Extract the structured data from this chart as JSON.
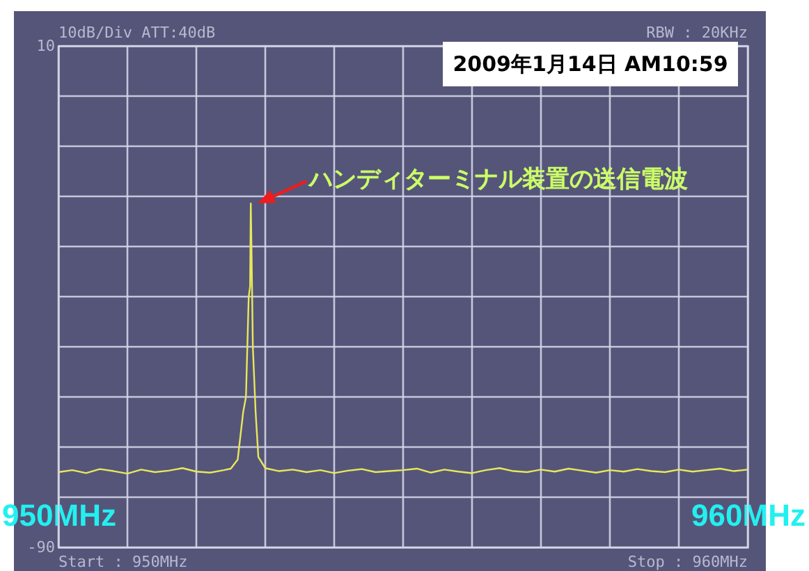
{
  "chart_data": {
    "type": "line",
    "x": [
      950.0,
      950.2,
      950.4,
      950.6,
      950.8,
      951.0,
      951.2,
      951.4,
      951.6,
      951.8,
      952.0,
      952.2,
      952.4,
      952.5,
      952.6,
      952.68,
      952.72,
      952.76,
      952.78,
      952.79,
      952.8,
      952.82,
      952.86,
      952.9,
      953.0,
      953.2,
      953.4,
      953.6,
      953.8,
      954.0,
      954.2,
      954.4,
      954.6,
      954.8,
      955.0,
      955.2,
      955.4,
      955.6,
      955.8,
      956.0,
      956.2,
      956.4,
      956.6,
      956.8,
      957.0,
      957.2,
      957.4,
      957.6,
      957.8,
      958.0,
      958.2,
      958.4,
      958.6,
      958.8,
      959.0,
      959.2,
      959.4,
      959.6,
      959.8,
      960.0
    ],
    "series": [
      {
        "color": "#e8e85a",
        "values": [
          -75,
          -74.6,
          -75.2,
          -74.4,
          -74.8,
          -75.3,
          -74.5,
          -75,
          -74.7,
          -74.2,
          -74.9,
          -75.1,
          -74.6,
          -74.3,
          -72.5,
          -63,
          -60,
          -40,
          -38,
          -21.4,
          -30,
          -50,
          -63,
          -72,
          -74.2,
          -74.8,
          -74.5,
          -75,
          -74.6,
          -75.2,
          -74.7,
          -74.4,
          -75,
          -74.8,
          -74.6,
          -74.3,
          -75.1,
          -74.5,
          -74.9,
          -75.2,
          -74.6,
          -74.2,
          -74.8,
          -75,
          -74.5,
          -74.9,
          -74.3,
          -74.7,
          -75.1,
          -74.6,
          -74.9,
          -74.4,
          -74.8,
          -75,
          -74.5,
          -74.9,
          -74.6,
          -74.3,
          -74.8,
          -74.5
        ]
      }
    ],
    "xlim": [
      950,
      960
    ],
    "xticks": [
      {
        "value": 950,
        "label": "950MHz"
      },
      {
        "value": 951,
        "label": null
      },
      {
        "value": 952,
        "label": null
      },
      {
        "value": 953,
        "label": null
      },
      {
        "value": 954,
        "label": null
      },
      {
        "value": 955,
        "label": null
      },
      {
        "value": 956,
        "label": null
      },
      {
        "value": 957,
        "label": null
      },
      {
        "value": 958,
        "label": null
      },
      {
        "value": 959,
        "label": null
      },
      {
        "value": 960,
        "label": "960MHz"
      }
    ],
    "ylim": [
      -90,
      10
    ],
    "yticks": [
      {
        "value": -90,
        "label": "-90"
      },
      {
        "value": -80,
        "label": null
      },
      {
        "value": -70,
        "label": null
      },
      {
        "value": -60,
        "label": null
      },
      {
        "value": -50,
        "label": null
      },
      {
        "value": -40,
        "label": null
      },
      {
        "value": -30,
        "label": null
      },
      {
        "value": -20,
        "label": null
      },
      {
        "value": -10,
        "label": null
      },
      {
        "value": 0,
        "label": null
      },
      {
        "value": 10,
        "label": "10"
      }
    ],
    "grid": true,
    "marker": "none",
    "line_style": "solid",
    "annotations": [
      "10dB/Div  ATT:40dB",
      "RBW : 20KHz",
      "2009年1月14日 AM10:59",
      {
        "text": "ハンディターミナル装置の送信電波",
        "x": 952.79,
        "y": -21.4
      },
      "Start : 950MHz",
      "Stop : 960MHz"
    ]
  }
}
